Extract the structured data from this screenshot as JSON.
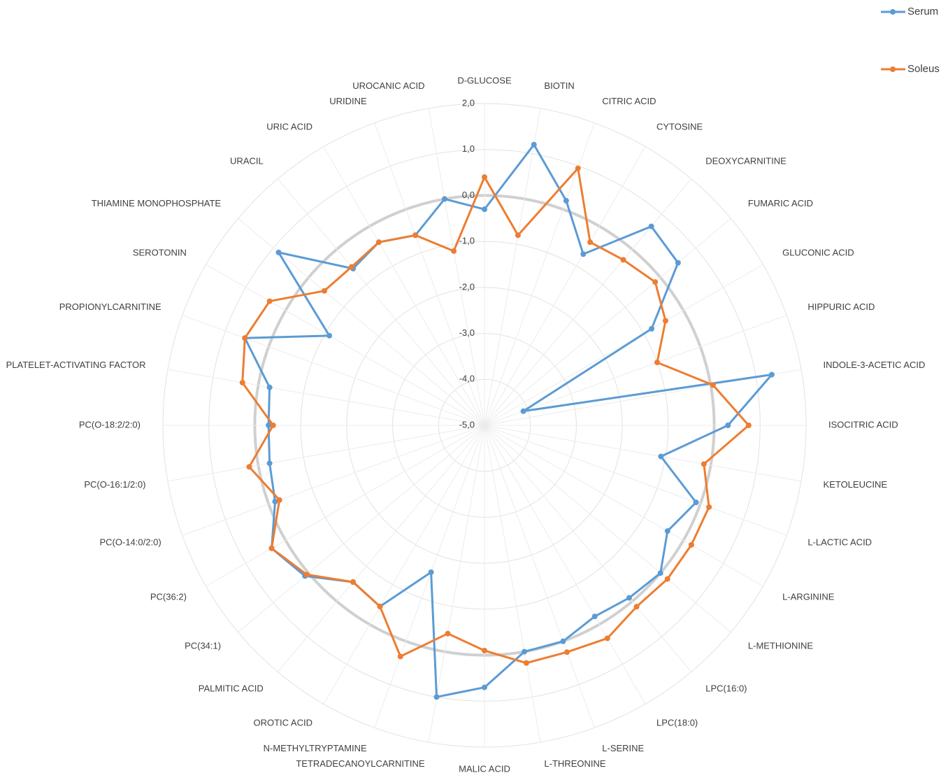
{
  "chart_data": {
    "type": "radar",
    "categories": [
      "D-GLUCOSE",
      "BIOTIN",
      "CITRIC ACID",
      "CYTOSINE",
      "DEOXYCARNITINE",
      "FUMARIC ACID",
      "GLUCONIC ACID",
      "HIPPURIC ACID",
      "INDOLE-3-ACETIC ACID",
      "ISOCITRIC ACID",
      "KETOLEUCINE",
      "L-LACTIC ACID",
      "L-ARGININE",
      "L-METHIONINE",
      "LPC(16:0)",
      "LPC(18:0)",
      "L-SERINE",
      "L-THREONINE",
      "MALIC ACID",
      "TETRADECANOYLCARNITINE",
      "N-METHYLTRYPTAMINE",
      "OROTIC ACID",
      "PALMITIC ACID",
      "PC(34:1)",
      "PC(36:2)",
      "PC(O-14:0/2:0)",
      "PC(O-16:1/2:0)",
      "PC(O-18:2/2:0)",
      "PLATELET-ACTIVATING  FACTOR",
      "PROPIONYLCARNITINE",
      "SEROTONIN",
      "THIAMINE MONOPHOSPHATE",
      "URACIL",
      "URIC ACID",
      "URIDINE",
      "UROCANIC ACID"
    ],
    "series": [
      {
        "name": "Serum",
        "color": "#5b9bd5",
        "values": [
          -0.3,
          1.2,
          0.2,
          -0.7,
          0.65,
          0.5,
          -0.8,
          -4.1,
          1.35,
          0.3,
          -1.1,
          -0.1,
          -0.4,
          0.0,
          -0.1,
          -0.2,
          0.0,
          0.0,
          0.7,
          1.0,
          -1.6,
          -0.45,
          -0.55,
          0.1,
          0.35,
          -0.15,
          -0.25,
          -0.3,
          -0.25,
          0.55,
          -1.1,
          0.85,
          -0.55,
          -0.4,
          -0.6,
          0.0
        ]
      },
      {
        "name": "Soleus",
        "color": "#ed7d31",
        "values": [
          0.4,
          -0.8,
          0.95,
          -0.4,
          -0.3,
          -0.15,
          -0.45,
          -1.0,
          0.05,
          0.75,
          -0.15,
          0.2,
          0.2,
          0.2,
          0.15,
          0.35,
          0.25,
          0.25,
          -0.1,
          -0.4,
          0.35,
          -0.45,
          -0.55,
          0.05,
          0.35,
          -0.25,
          0.2,
          -0.4,
          0.35,
          0.55,
          0.4,
          -0.45,
          -0.5,
          -0.4,
          -0.6,
          -1.15
        ]
      }
    ],
    "ylim": [
      -5,
      2
    ],
    "yticks": [
      {
        "value": 2,
        "label": "2,0"
      },
      {
        "value": 1,
        "label": "1,0"
      },
      {
        "value": 0,
        "label": "0,0"
      },
      {
        "value": -1,
        "label": "-1,0"
      },
      {
        "value": -2,
        "label": "-2,0"
      },
      {
        "value": -3,
        "label": "-3,0"
      },
      {
        "value": -4,
        "label": "-4,0"
      },
      {
        "value": -5,
        "label": "-5,0"
      }
    ],
    "grid": true,
    "legend": "top-right"
  }
}
